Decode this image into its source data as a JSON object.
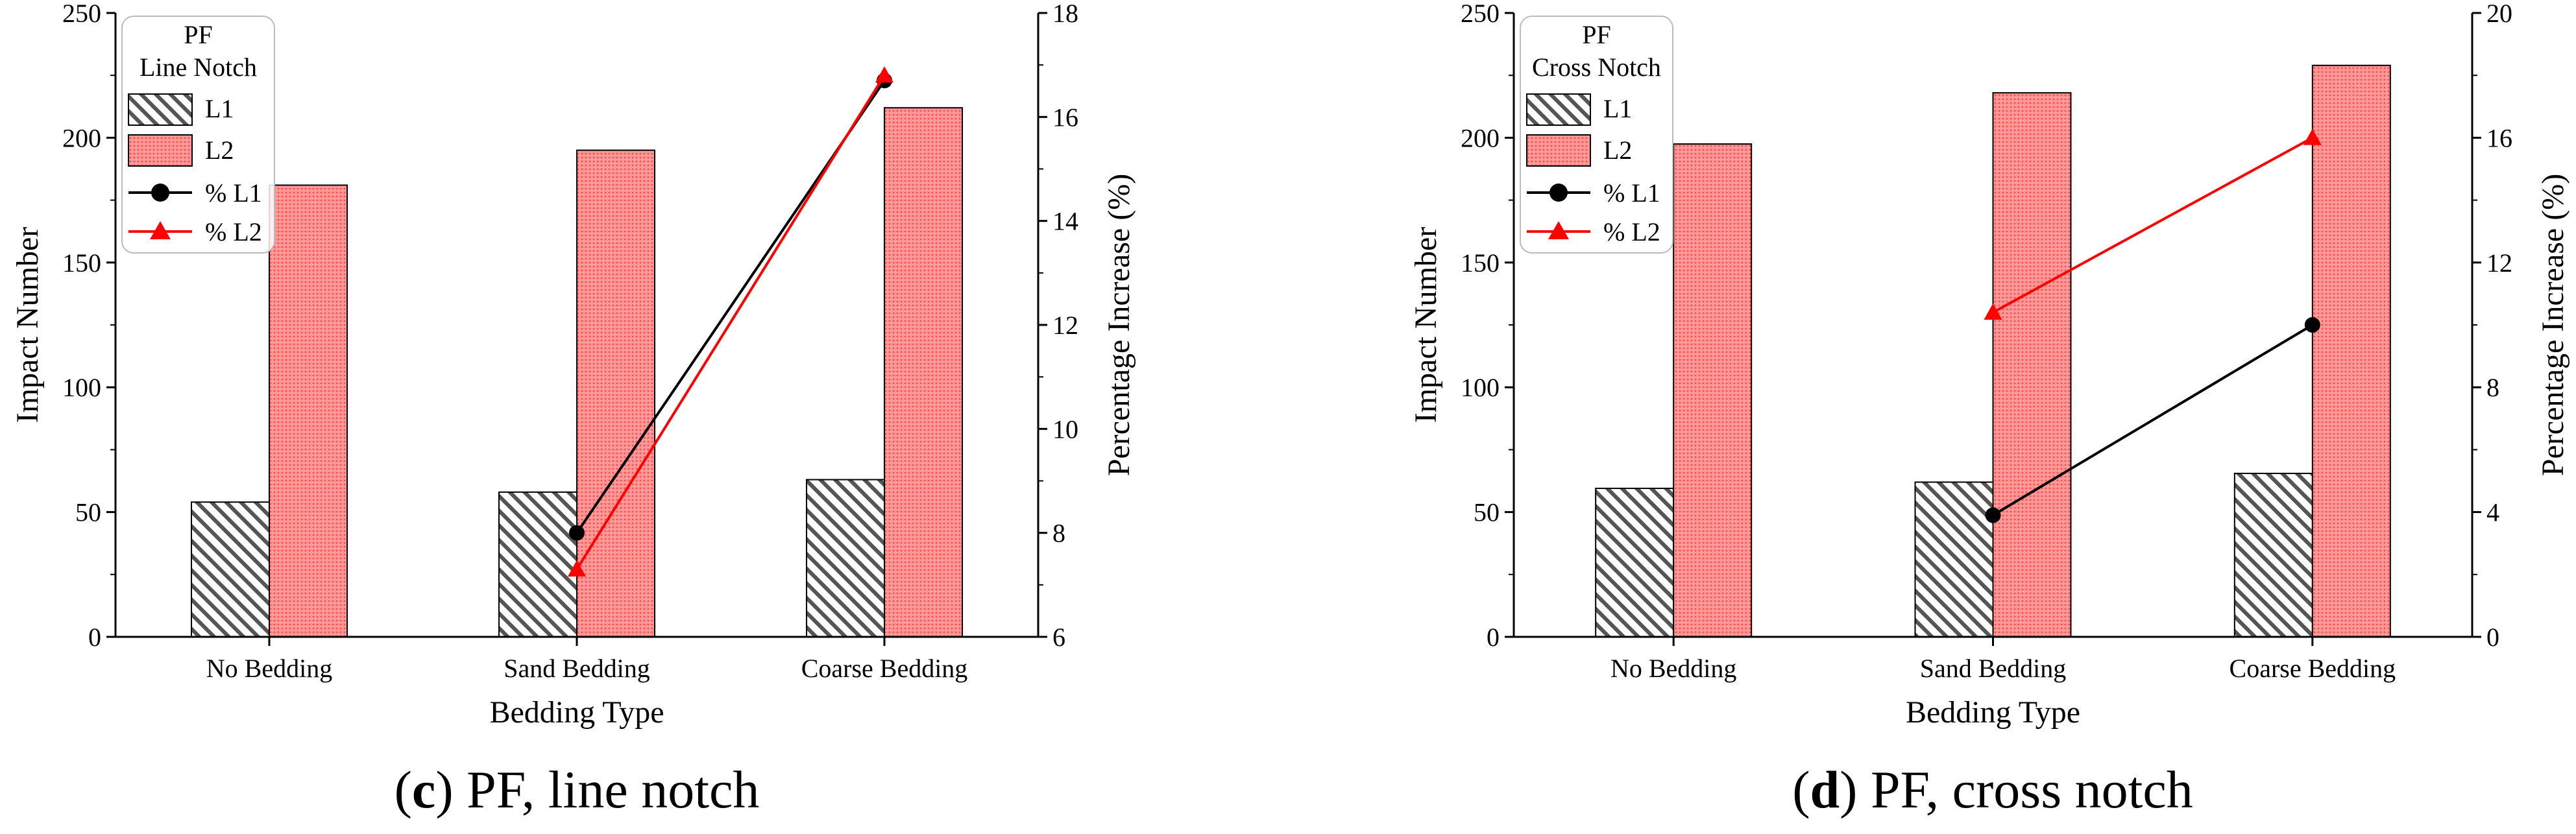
{
  "chart_data": [
    {
      "type": "bar",
      "id": "c",
      "categories": [
        "No Bedding",
        "Sand Bedding",
        "Coarse Bedding"
      ],
      "series": [
        {
          "name": "L1",
          "values": [
            54,
            58,
            63
          ],
          "color": "#555555",
          "pattern": "hatch"
        },
        {
          "name": "L2",
          "values": [
            181,
            195,
            212
          ],
          "color": "#ff5555",
          "pattern": "red-dots"
        }
      ],
      "line_series": [
        {
          "name": "% L1",
          "x_index": [
            1,
            2
          ],
          "values": [
            8.0,
            16.7
          ],
          "color": "#000000",
          "marker": "circle"
        },
        {
          "name": "% L2",
          "x_index": [
            1,
            2
          ],
          "values": [
            7.3,
            16.8
          ],
          "color": "#ff0000",
          "marker": "triangle"
        }
      ],
      "xlabel": "Bedding Type",
      "ylabel": "Impact Number",
      "y2label": "Percentage Increase (%)",
      "ylim": [
        0,
        250
      ],
      "y_ticks": [
        0,
        50,
        100,
        150,
        200,
        250
      ],
      "y2lim": [
        6,
        18
      ],
      "y2_ticks": [
        6,
        8,
        10,
        12,
        14,
        16,
        18
      ],
      "legend_title": [
        "PF",
        "Line Notch"
      ],
      "legend_position": "top-left",
      "caption": {
        "letter": "c",
        "text": " PF, line notch"
      }
    },
    {
      "type": "bar",
      "id": "d",
      "categories": [
        "No Bedding",
        "Sand Bedding",
        "Coarse Bedding"
      ],
      "series": [
        {
          "name": "L1",
          "values": [
            59.5,
            62,
            65.5
          ],
          "color": "#555555",
          "pattern": "hatch"
        },
        {
          "name": "L2",
          "values": [
            197.5,
            218,
            229
          ],
          "color": "#ff5555",
          "pattern": "red-dots"
        }
      ],
      "line_series": [
        {
          "name": "% L1",
          "x_index": [
            1,
            2
          ],
          "values": [
            3.9,
            10.0
          ],
          "color": "#000000",
          "marker": "circle"
        },
        {
          "name": "% L2",
          "x_index": [
            1,
            2
          ],
          "values": [
            10.4,
            16.0
          ],
          "color": "#ff0000",
          "marker": "triangle"
        }
      ],
      "xlabel": "Bedding Type",
      "ylabel": "Impact Number",
      "y2label": "Percentage Increase (%)",
      "ylim": [
        0,
        250
      ],
      "y_ticks": [
        0,
        50,
        100,
        150,
        200,
        250
      ],
      "y2lim": [
        0,
        20
      ],
      "y2_ticks": [
        0,
        4,
        8,
        12,
        16,
        20
      ],
      "legend_title": [
        "PF",
        "Cross Notch"
      ],
      "legend_position": "top-left",
      "caption": {
        "letter": "d",
        "text": " PF, cross notch"
      }
    }
  ]
}
